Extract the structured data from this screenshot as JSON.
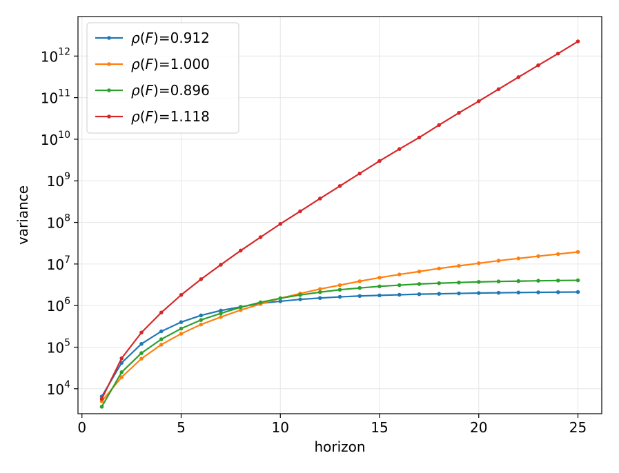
{
  "chart_data": {
    "type": "line",
    "xlabel": "horizon",
    "ylabel": "variance",
    "yscale": "log",
    "xlim": [
      -0.2,
      26.2
    ],
    "ylim_log10": [
      3.4,
      12.95
    ],
    "x_ticks": [
      0,
      5,
      10,
      15,
      20,
      25
    ],
    "y_ticks_exponent": [
      4,
      5,
      6,
      7,
      8,
      9,
      10,
      11,
      12
    ],
    "grid": true,
    "legend_position": "top-left",
    "x": [
      1,
      2,
      3,
      4,
      5,
      6,
      7,
      8,
      9,
      10,
      11,
      12,
      13,
      14,
      15,
      16,
      17,
      18,
      19,
      20,
      21,
      22,
      23,
      24,
      25
    ],
    "series": [
      {
        "name_prefix": "ρ(F)=",
        "name_value": "0.912",
        "color": "#1f77b4",
        "values": [
          6500,
          42000,
          120000,
          240000,
          400000,
          580000,
          760000,
          930000,
          1130000,
          1270000,
          1410000,
          1520000,
          1620000,
          1700000,
          1760000,
          1820000,
          1880000,
          1920000,
          1960000,
          2000000,
          2030000,
          2060000,
          2080000,
          2100000,
          2120000
        ]
      },
      {
        "name_prefix": "ρ(F)=",
        "name_value": "1.000",
        "color": "#ff7f0e",
        "values": [
          5000,
          19000,
          53000,
          115000,
          210000,
          350000,
          530000,
          780000,
          1090000,
          1500000,
          1950000,
          2500000,
          3100000,
          3850000,
          4700000,
          5600000,
          6600000,
          7800000,
          9000000,
          10400000,
          12000000,
          13600000,
          15400000,
          17300000,
          19500000
        ]
      },
      {
        "name_prefix": "ρ(F)=",
        "name_value": "0.896",
        "color": "#2ca02c",
        "values": [
          3700,
          25000,
          72000,
          155000,
          280000,
          450000,
          650000,
          910000,
          1200000,
          1500000,
          1800000,
          2100000,
          2400000,
          2650000,
          2900000,
          3100000,
          3300000,
          3450000,
          3580000,
          3700000,
          3800000,
          3870000,
          3950000,
          4000000,
          4050000
        ]
      },
      {
        "name_prefix": "ρ(F)=",
        "name_value": "1.118",
        "color": "#d62728",
        "values": [
          5700,
          54000,
          225000,
          680000,
          1800000,
          4300000,
          9600000,
          21000000,
          44000000,
          92000000,
          185000000,
          375000000,
          750000000,
          1500000000,
          3000000000,
          5800000000,
          11000000000,
          22000000000,
          43000000000,
          82000000000,
          160000000000,
          310000000000,
          600000000000,
          1150000000000,
          2250000000000
        ]
      }
    ]
  }
}
